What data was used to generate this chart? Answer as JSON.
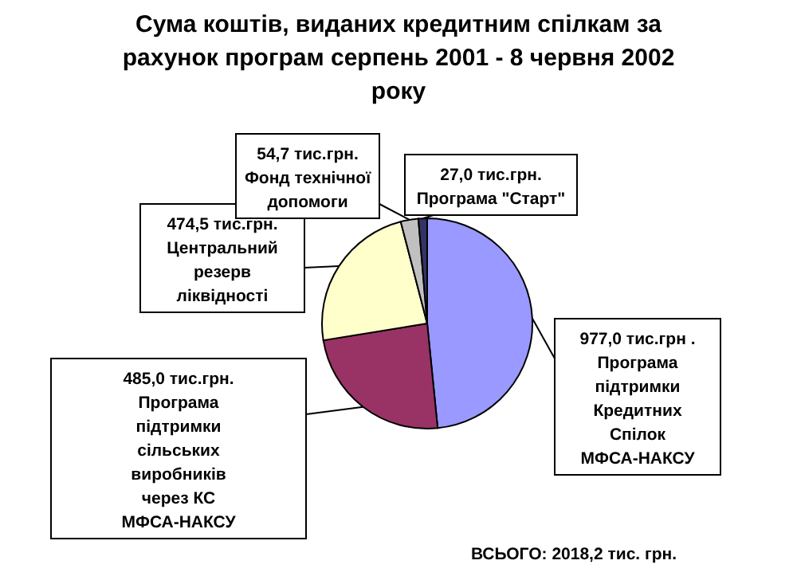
{
  "chart_data": {
    "type": "pie",
    "title": "Сума коштів, виданих кредитним спілкам за рахунок програм серпень 2001 - 8 червня 2002 року",
    "categories": [
      "Програма підтримки Кредитних Спілок МФСА-НАКСУ",
      "Програма підтримки сільських виробників через КС МФСА-НАКСУ",
      "Центральний резерв ліквідності",
      "Фонд технічної допомоги",
      "Програма \"Старт\""
    ],
    "values": [
      977.0,
      485.0,
      474.5,
      54.7,
      27.0
    ],
    "value_labels": [
      "977,0 тис.грн .",
      "485,0 тис.грн.",
      "474,5 тис.грн.",
      "54,7 тис.грн.",
      "27,0 тис.грн."
    ],
    "colors": [
      "#9999ff",
      "#993366",
      "#ffffcc",
      "#c0c0c0",
      "#333366"
    ],
    "annotations": [
      "ВСЬОГО: 2018,2 тис. грн."
    ]
  }
}
